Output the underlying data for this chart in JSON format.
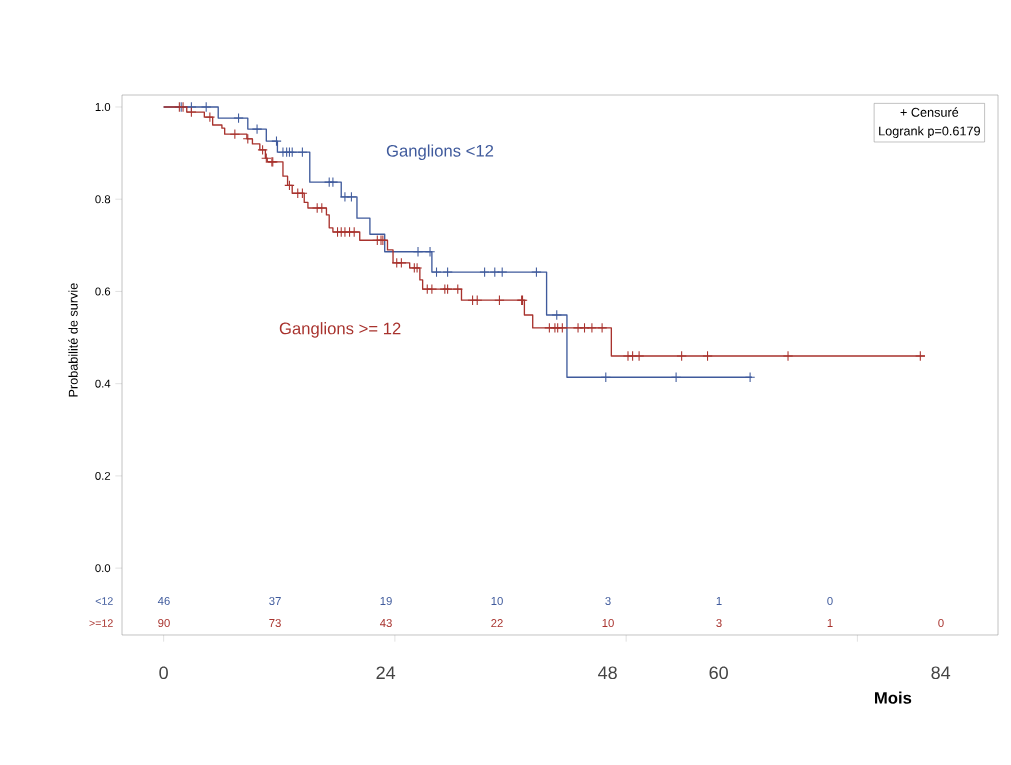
{
  "chart_data": {
    "type": "step",
    "xlabel": "Mois",
    "ylabel": "Probabilité de survie",
    "xlim": [
      -4.5,
      90.2
    ],
    "ylim": [
      -0.145,
      1.026
    ],
    "xticks": [
      {
        "value": 0,
        "label": null
      },
      {
        "value": 25,
        "label": null
      },
      {
        "value": 50,
        "label": null
      },
      {
        "value": 75,
        "label": null
      },
      0,
      24,
      48,
      60,
      84
    ],
    "yticks": [
      {
        "value": 0,
        "label": "0.0"
      },
      {
        "value": 0.2,
        "label": "0.2"
      },
      {
        "value": 0.4,
        "label": "0.4"
      },
      {
        "value": 0.6,
        "label": "0.6"
      },
      {
        "value": 0.8,
        "label": "0.8"
      },
      {
        "value": 1.0,
        "label": "1.0"
      }
    ],
    "series": [
      {
        "name": "Ganglions <12",
        "type": "step",
        "color": "#3f5a9c",
        "x": [
          0,
          5.9,
          9.1,
          11.1,
          12.3,
          15.8,
          19.2,
          20.9,
          22.3,
          23.9,
          29.0,
          41.4,
          43.6,
          63.6
        ],
        "values": [
          1,
          0.976,
          0.952,
          0.926,
          0.902,
          0.837,
          0.805,
          0.759,
          0.724,
          0.686,
          0.642,
          0.549,
          0.414,
          0.414
        ]
      },
      {
        "name": "Ganglions >= 12",
        "type": "step",
        "color": "#a8322d",
        "x": [
          0,
          2.5,
          4.4,
          5.3,
          6.3,
          6.6,
          9.0,
          9.6,
          10.4,
          11.0,
          11.2,
          12.9,
          13.4,
          13.9,
          15.2,
          15.6,
          17.6,
          17.9,
          18.3,
          21.2,
          24.2,
          24.8,
          26.6,
          27.7,
          28.0,
          32.2,
          39.0,
          39.9,
          48.4,
          82.3
        ],
        "values": [
          1,
          0.989,
          0.978,
          0.961,
          0.954,
          0.941,
          0.931,
          0.92,
          0.907,
          0.889,
          0.881,
          0.85,
          0.83,
          0.813,
          0.793,
          0.781,
          0.766,
          0.738,
          0.729,
          0.711,
          0.69,
          0.662,
          0.651,
          0.625,
          0.605,
          0.581,
          0.549,
          0.521,
          0.46,
          0.46
        ]
      },
      {
        "type": "scatter",
        "marker": "cross",
        "color": "#3f5a9c",
        "x": [
          1.9,
          3.0,
          4.6,
          8.1,
          10.1,
          12.2,
          12.9,
          13.3,
          13.6,
          13.9,
          15.0,
          17.9,
          18.3,
          19.6,
          20.3,
          27.5,
          28.8,
          29.5,
          30.7,
          34.7,
          35.8,
          36.6,
          40.3,
          42.5,
          47.8,
          55.4,
          63.4
        ],
        "values": [
          1,
          1,
          1,
          0.976,
          0.952,
          0.926,
          0.902,
          0.902,
          0.902,
          0.902,
          0.902,
          0.837,
          0.837,
          0.805,
          0.805,
          0.686,
          0.686,
          0.642,
          0.642,
          0.642,
          0.642,
          0.642,
          0.642,
          0.549,
          0.414,
          0.414,
          0.414
        ]
      },
      {
        "type": "scatter",
        "marker": "cross",
        "color": "#a8322d",
        "x": [
          1.7,
          2.1,
          3.0,
          5.0,
          7.7,
          9.1,
          10.7,
          11.1,
          11.7,
          11.8,
          13.6,
          14.5,
          15.0,
          16.6,
          17.1,
          18.8,
          19.2,
          19.6,
          20.1,
          20.6,
          23.1,
          23.5,
          23.7,
          25.2,
          25.7,
          27.1,
          27.4,
          28.5,
          29.0,
          30.4,
          30.7,
          31.8,
          33.4,
          33.9,
          36.3,
          38.7,
          38.8,
          41.7,
          42.3,
          42.6,
          43.1,
          44.8,
          45.5,
          46.3,
          47.4,
          50.2,
          50.7,
          51.4,
          56.0,
          58.8,
          67.5,
          81.8
        ],
        "values": [
          1,
          1,
          0.989,
          0.978,
          0.941,
          0.931,
          0.907,
          0.889,
          0.881,
          0.881,
          0.83,
          0.813,
          0.813,
          0.781,
          0.781,
          0.729,
          0.729,
          0.729,
          0.729,
          0.729,
          0.711,
          0.711,
          0.711,
          0.662,
          0.662,
          0.651,
          0.651,
          0.605,
          0.605,
          0.605,
          0.605,
          0.605,
          0.581,
          0.581,
          0.581,
          0.581,
          0.581,
          0.521,
          0.521,
          0.521,
          0.521,
          0.521,
          0.521,
          0.521,
          0.521,
          0.46,
          0.46,
          0.46,
          0.46,
          0.46,
          0.46,
          0.46
        ]
      }
    ],
    "annotations": [
      "+ Censuré",
      "Logrank p=0.6179",
      "<12",
      "46",
      "37",
      "19",
      "10",
      "3",
      "1",
      "0",
      ">=12",
      "90",
      "73",
      "43",
      "22",
      "10",
      "3",
      "1",
      "0"
    ]
  }
}
